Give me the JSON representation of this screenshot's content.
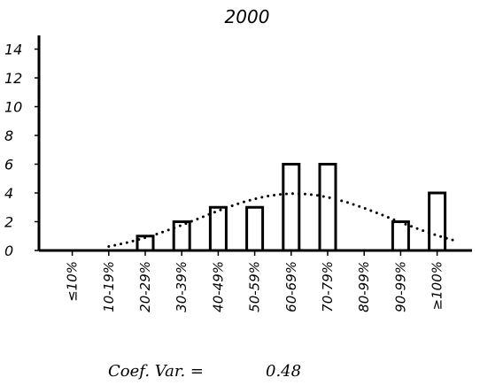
{
  "chart_data": {
    "type": "bar",
    "title": "2000",
    "xlabel": "",
    "ylabel": "",
    "categories": [
      "≤10%",
      "10-19%",
      "20-29%",
      "30-39%",
      "40-49%",
      "50-59%",
      "60-69%",
      "70-79%",
      "80-99%",
      "90-99%",
      "≥100%"
    ],
    "values": [
      0,
      0,
      1,
      2,
      3,
      3,
      6,
      6,
      0,
      2,
      4
    ],
    "ylim": [
      0,
      14
    ],
    "yticks": [
      0,
      2,
      4,
      6,
      8,
      10,
      12,
      14
    ],
    "grid": false,
    "legend": "none",
    "fit_curve": {
      "style": "dotted",
      "description_values": [
        0.0,
        0.0,
        0.4,
        1.5,
        3.0,
        3.9,
        4.3,
        4.3,
        3.7,
        2.5,
        1.5,
        0.9
      ]
    },
    "annotation": {
      "label": "Coef. Var. =",
      "value": "0.48"
    }
  }
}
